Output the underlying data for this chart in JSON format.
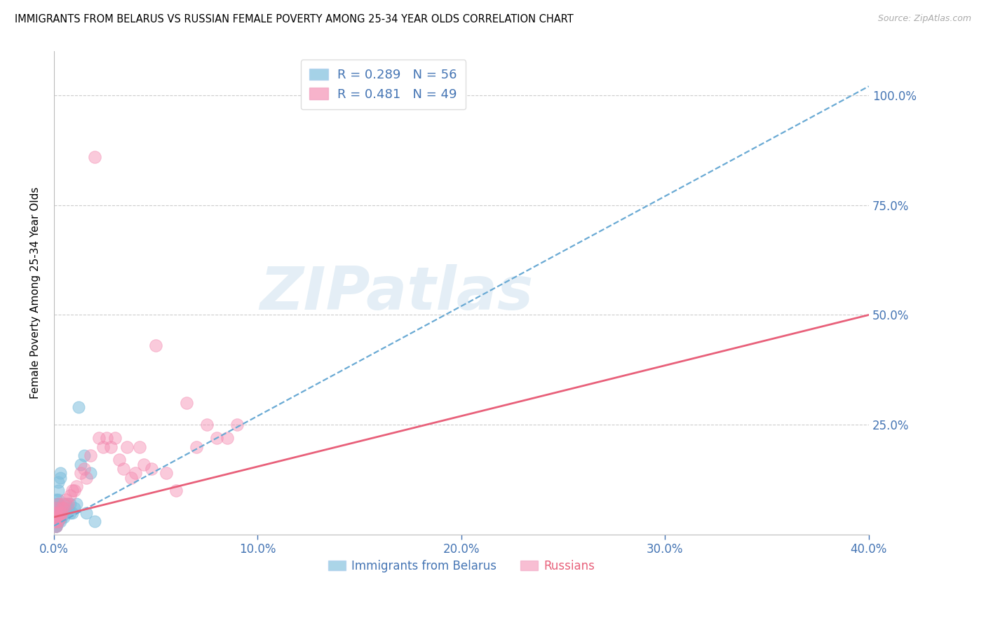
{
  "title": "IMMIGRANTS FROM BELARUS VS RUSSIAN FEMALE POVERTY AMONG 25-34 YEAR OLDS CORRELATION CHART",
  "source": "Source: ZipAtlas.com",
  "ylabel": "Female Poverty Among 25-34 Year Olds",
  "legend1_label": "Immigrants from Belarus",
  "legend2_label": "Russians",
  "R1": "0.289",
  "N1": "56",
  "R2": "0.481",
  "N2": "49",
  "color_blue": "#7fbfdd",
  "color_blue_line": "#6aaad4",
  "color_pink": "#f48ab0",
  "color_pink_line": "#e8607a",
  "color_axis": "#4575b4",
  "xlim": [
    0.0,
    0.4
  ],
  "ylim": [
    0.0,
    1.1
  ],
  "yticks": [
    0.25,
    0.5,
    0.75,
    1.0
  ],
  "ytick_labels": [
    "25.0%",
    "50.0%",
    "75.0%",
    "100.0%"
  ],
  "xticks": [
    0.0,
    0.1,
    0.2,
    0.3,
    0.4
  ],
  "xtick_labels": [
    "0.0%",
    "10.0%",
    "20.0%",
    "30.0%",
    "40.0%"
  ],
  "blue_x": [
    0.0,
    0.001,
    0.001,
    0.001,
    0.001,
    0.001,
    0.001,
    0.001,
    0.001,
    0.001,
    0.001,
    0.001,
    0.001,
    0.001,
    0.001,
    0.001,
    0.001,
    0.002,
    0.002,
    0.002,
    0.002,
    0.002,
    0.002,
    0.002,
    0.002,
    0.002,
    0.002,
    0.003,
    0.003,
    0.003,
    0.003,
    0.003,
    0.004,
    0.004,
    0.004,
    0.005,
    0.005,
    0.005,
    0.006,
    0.006,
    0.007,
    0.008,
    0.008,
    0.009,
    0.01,
    0.011,
    0.012,
    0.013,
    0.015,
    0.016,
    0.018,
    0.02,
    0.001,
    0.002,
    0.003,
    0.002
  ],
  "blue_y": [
    0.03,
    0.04,
    0.02,
    0.05,
    0.06,
    0.03,
    0.04,
    0.02,
    0.07,
    0.05,
    0.04,
    0.06,
    0.03,
    0.05,
    0.04,
    0.08,
    0.05,
    0.03,
    0.06,
    0.07,
    0.04,
    0.05,
    0.06,
    0.03,
    0.05,
    0.12,
    0.1,
    0.04,
    0.06,
    0.05,
    0.13,
    0.14,
    0.05,
    0.06,
    0.04,
    0.05,
    0.04,
    0.06,
    0.05,
    0.07,
    0.06,
    0.05,
    0.07,
    0.05,
    0.06,
    0.07,
    0.29,
    0.16,
    0.18,
    0.05,
    0.14,
    0.03,
    0.02,
    0.04,
    0.03,
    0.08
  ],
  "pink_x": [
    0.0,
    0.001,
    0.001,
    0.001,
    0.001,
    0.001,
    0.001,
    0.002,
    0.002,
    0.002,
    0.003,
    0.003,
    0.004,
    0.004,
    0.005,
    0.005,
    0.006,
    0.007,
    0.008,
    0.009,
    0.01,
    0.011,
    0.013,
    0.015,
    0.016,
    0.018,
    0.02,
    0.022,
    0.024,
    0.026,
    0.028,
    0.03,
    0.032,
    0.034,
    0.036,
    0.038,
    0.04,
    0.042,
    0.044,
    0.048,
    0.05,
    0.055,
    0.06,
    0.065,
    0.07,
    0.075,
    0.08,
    0.085,
    0.09
  ],
  "pink_y": [
    0.03,
    0.05,
    0.02,
    0.04,
    0.06,
    0.03,
    0.05,
    0.04,
    0.03,
    0.07,
    0.05,
    0.04,
    0.06,
    0.05,
    0.07,
    0.06,
    0.08,
    0.07,
    0.09,
    0.1,
    0.1,
    0.11,
    0.14,
    0.15,
    0.13,
    0.18,
    0.86,
    0.22,
    0.2,
    0.22,
    0.2,
    0.22,
    0.17,
    0.15,
    0.2,
    0.13,
    0.14,
    0.2,
    0.16,
    0.15,
    0.43,
    0.14,
    0.1,
    0.3,
    0.2,
    0.25,
    0.22,
    0.22,
    0.25
  ],
  "blue_line_x0": 0.0,
  "blue_line_x1": 0.4,
  "blue_line_y0": 0.02,
  "blue_line_y1": 1.02,
  "pink_line_x0": 0.0,
  "pink_line_x1": 0.4,
  "pink_line_y0": 0.04,
  "pink_line_y1": 0.5,
  "watermark_text": "ZIPatlas",
  "figsize": [
    14.06,
    8.92
  ],
  "dpi": 100
}
